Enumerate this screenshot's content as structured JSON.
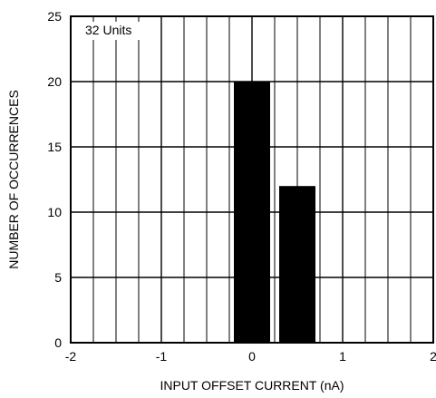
{
  "chart_data": {
    "type": "bar",
    "xlabel": "INPUT OFFSET CURRENT (nA)",
    "ylabel": "NUMBER OF OCCURRENCES",
    "annotation": "32 Units",
    "xlim": [
      -2,
      2
    ],
    "ylim": [
      0,
      25
    ],
    "x_tick_labels": [
      "-2",
      "-1",
      "0",
      "1",
      "2"
    ],
    "y_tick_labels": [
      "0",
      "5",
      "10",
      "15",
      "20",
      "25"
    ],
    "x_ticks": [
      -2,
      -1,
      0,
      1,
      2
    ],
    "y_ticks": [
      0,
      5,
      10,
      15,
      20,
      25
    ],
    "x_gridline_step": 0.25,
    "y_gridline_step": 5,
    "grid": true,
    "bars": [
      {
        "x_start": -0.2,
        "x_end": 0.2,
        "value": 20
      },
      {
        "x_start": 0.3,
        "x_end": 0.7,
        "value": 12
      }
    ],
    "bar_color": "#000000",
    "grid_color": "#000000"
  }
}
